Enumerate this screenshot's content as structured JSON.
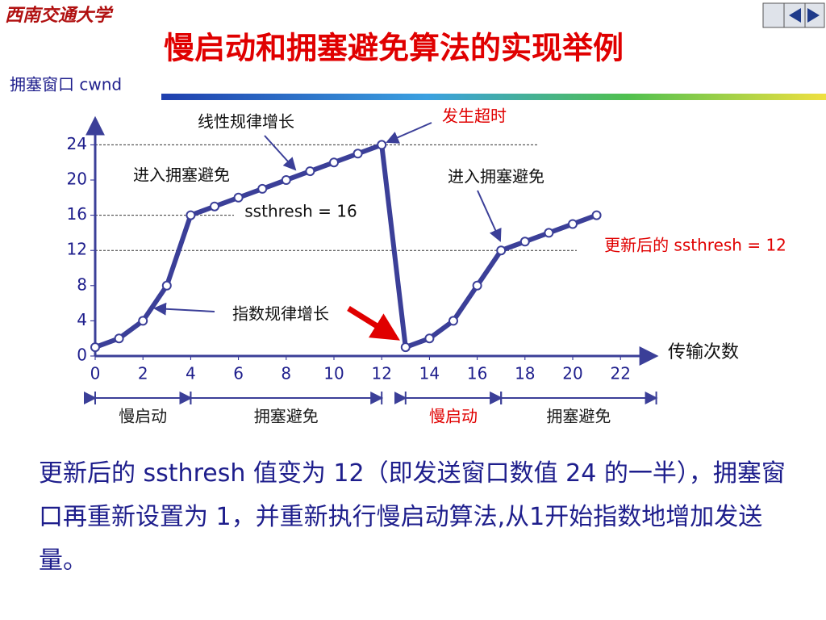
{
  "header": {
    "logo": "西南交通大学",
    "title": "慢启动和拥塞避免算法的实现举例"
  },
  "chart_data": {
    "type": "line",
    "y_label": "拥塞窗口 cwnd",
    "x_label": "传输次数",
    "x": [
      0,
      1,
      2,
      3,
      4,
      5,
      6,
      7,
      8,
      9,
      10,
      11,
      12,
      13,
      14,
      15,
      16,
      17,
      18,
      19,
      20,
      21
    ],
    "series": [
      {
        "name": "cwnd",
        "color": "#3b3f98",
        "values": [
          1,
          2,
          4,
          8,
          16,
          17,
          18,
          19,
          20,
          21,
          22,
          23,
          24,
          1,
          2,
          4,
          8,
          12,
          13,
          14,
          15,
          16
        ]
      }
    ],
    "xlim": [
      0,
      23.5
    ],
    "ylim": [
      0,
      27
    ],
    "xticks": [
      0,
      2,
      4,
      6,
      8,
      10,
      12,
      14,
      16,
      18,
      20,
      22
    ],
    "yticks": [
      0,
      4,
      8,
      12,
      16,
      20,
      24
    ],
    "annotations": [
      "线性规律增长",
      "发生超时",
      "进入拥塞避免",
      "进入拥塞避免",
      "ssthresh = 16",
      "更新后的 ssthresh = 12",
      "指数规律增长"
    ],
    "phases": [
      {
        "label": "慢启动",
        "start": 0,
        "end": 4,
        "color": "#1a1a1a"
      },
      {
        "label": "拥塞避免",
        "start": 4,
        "end": 12,
        "color": "#1a1a1a"
      },
      {
        "label": "慢启动",
        "start": 13,
        "end": 17,
        "color": "#e00000"
      },
      {
        "label": "拥塞避免",
        "start": 17,
        "end": 23.5,
        "color": "#1a1a1a"
      }
    ]
  },
  "body": {
    "text": "更新后的 ssthresh 值变为 12（即发送窗口数值 24 的一半），拥塞窗口再重新设置为 1，并重新执行慢启动算法,从1开始指数地增加发送量。"
  }
}
